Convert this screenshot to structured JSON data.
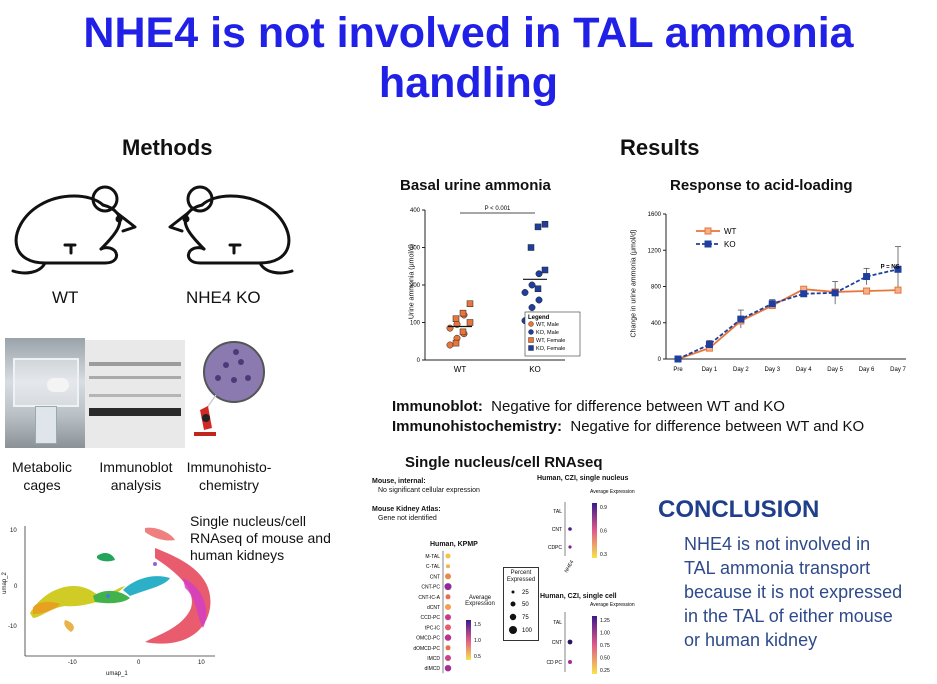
{
  "title": "NHE4 is not involved in TAL ammonia handling",
  "methods": {
    "heading": "Methods",
    "mouse_wt": "WT",
    "mouse_ko": "NHE4 KO",
    "captions": [
      "Metabolic cages",
      "Immunoblot analysis",
      "Immunohisto-chemistry"
    ],
    "rnaseq_caption": "Single nucleus/cell RNAseq of mouse and human kidneys",
    "umap": {
      "xlabel": "umap_1",
      "ylabel": "umap_2",
      "xticks": [
        "-10",
        "0",
        "10"
      ],
      "yticks": [
        "10",
        "0",
        "-10"
      ]
    }
  },
  "results": {
    "heading": "Results",
    "immunoblot_label": "Immunoblot:",
    "immunoblot_text": "Negative for difference between WT and KO",
    "ihc_label": "Immunohistochemistry:",
    "ihc_text": "Negative for difference between WT and KO",
    "rnaseq_heading": "Single nucleus/cell RNAseq",
    "rnaseq": {
      "mouse_internal": "Mouse, internal:",
      "mouse_internal_text": "No significant cellular expression",
      "mouse_atlas": "Mouse Kidney Atlas:",
      "mouse_atlas_text": "Gene not identified",
      "kpmp_title": "Human, KPMP",
      "kpmp_rows": [
        "M-TAL",
        "C-TAL",
        "CNT",
        "CNT-PC",
        "CNT-IC-A",
        "dCNT",
        "CCD-PC",
        "tPC-IC",
        "OMCD-PC",
        "dOMCD-PC",
        "IMCD",
        "dIMCD"
      ],
      "avg_expr": "Average Expression",
      "kpmp_scale": [
        "1.5",
        "1.0",
        "0.5"
      ],
      "pct_title": "Percent Expressed",
      "pct_values": [
        "25",
        "50",
        "75",
        "100"
      ],
      "czi_nucleus_title": "Human, CZI, single nucleus",
      "czi_nucleus_rows": [
        "TAL",
        "CNT",
        "CDPC"
      ],
      "czi_nucleus_scale": [
        "0.9",
        "0.6",
        "0.3"
      ],
      "czi_cell_title": "Human, CZI, single cell",
      "czi_cell_rows": [
        "TAL",
        "CNT",
        "CD PC"
      ],
      "czi_cell_scale": [
        "1.25",
        "1.00",
        "0.75",
        "0.50",
        "0.25"
      ],
      "gene": "NHE4"
    }
  },
  "conclusion": {
    "heading": "CONCLUSION",
    "lines": [
      "NHE4 is not involved in",
      "TAL ammonia transport",
      "because it is not expressed",
      "in the TAL of either mouse",
      "or human kidney"
    ]
  },
  "chart_data": [
    {
      "type": "scatter",
      "title": "Basal urine ammonia",
      "ylabel": "Urine ammonia (μmol/d)",
      "categories": [
        "WT",
        "KO"
      ],
      "ylim": [
        0,
        400
      ],
      "yticks": [
        "0",
        "100",
        "200",
        "300",
        "400"
      ],
      "annotation": "P < 0.001",
      "legend_title": "Legend",
      "legend": [
        "WT, Male",
        "KO, Male",
        "WT, Female",
        "KO, Female"
      ],
      "series": [
        {
          "name": "WT, Male",
          "category": "WT",
          "values": [
            40,
            58,
            70,
            85,
            95,
            120
          ]
        },
        {
          "name": "KO, Male",
          "category": "KO",
          "values": [
            105,
            140,
            160,
            180,
            200,
            230
          ]
        },
        {
          "name": "WT, Female",
          "category": "WT",
          "values": [
            45,
            75,
            100,
            110,
            125,
            150
          ]
        },
        {
          "name": "KO, Female",
          "category": "KO",
          "values": [
            120,
            190,
            240,
            300,
            355,
            362
          ]
        }
      ],
      "colors": {
        "WT": "#e8753a",
        "KO": "#1f3f9e"
      }
    },
    {
      "type": "line",
      "title": "Response to acid-loading",
      "ylabel": "Change in urine ammonia (μmol/d)",
      "x": [
        "Pre",
        "Day 1",
        "Day 2",
        "Day 3",
        "Day 4",
        "Day 5",
        "Day 6",
        "Day 7"
      ],
      "ylim": [
        0,
        1600
      ],
      "yticks": [
        "0",
        "400",
        "800",
        "1200",
        "1600"
      ],
      "annotation": "P = NS",
      "series": [
        {
          "name": "WT",
          "values": [
            0,
            120,
            420,
            590,
            770,
            740,
            750,
            760
          ]
        },
        {
          "name": "KO",
          "values": [
            0,
            160,
            440,
            610,
            720,
            730,
            910,
            990
          ]
        }
      ],
      "errors": {
        "KO": [
          0,
          90,
          200,
          90,
          60,
          250,
          180,
          500
        ]
      },
      "colors": {
        "WT": "#e8753a",
        "KO": "#1f3f9e"
      }
    }
  ]
}
